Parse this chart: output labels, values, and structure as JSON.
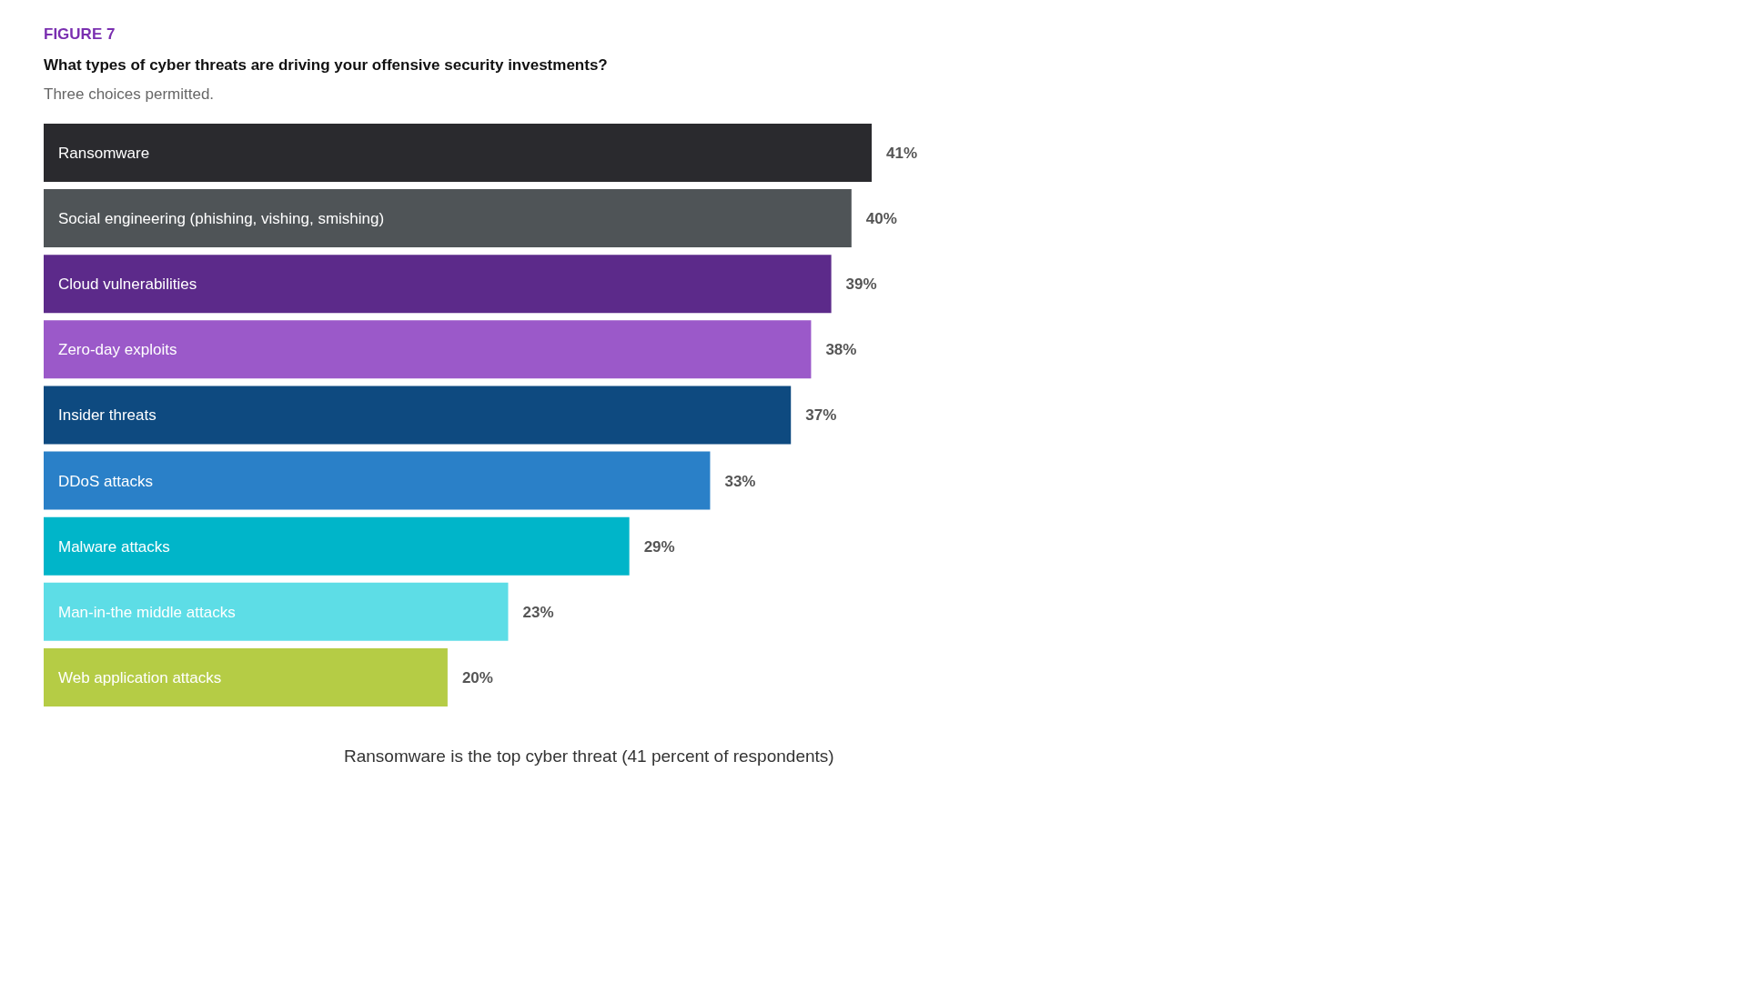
{
  "chart_data": {
    "type": "bar",
    "title": "What types of cyber threats are driving your offensive security investments?",
    "subtitle": "Three choices permitted.",
    "annotations": [
      "FIGURE 7",
      "Ransomware is the top cyber threat (41 percent of respondents)"
    ],
    "categories": [
      "Ransomware",
      "Social engineering (phishing, vishing, smishing)",
      "Cloud vulnerabilities",
      "Zero-day exploits",
      "Insider threats",
      "DDoS attacks",
      "Malware attacks",
      "Man-in-the middle attacks",
      "Web application attacks"
    ],
    "values": [
      41,
      40,
      39,
      38,
      37,
      33,
      29,
      23,
      20
    ],
    "value_labels": [
      "41%",
      "40%",
      "39%",
      "38%",
      "37%",
      "33%",
      "29%",
      "23%",
      "20%"
    ],
    "colors": [
      "#2a2a2e",
      "#4f5457",
      "#5c2a8a",
      "#9b59c9",
      "#0e4a80",
      "#2a80c8",
      "#00b5c9",
      "#5ddde6",
      "#b5cc45"
    ],
    "orientation": "horizontal"
  }
}
